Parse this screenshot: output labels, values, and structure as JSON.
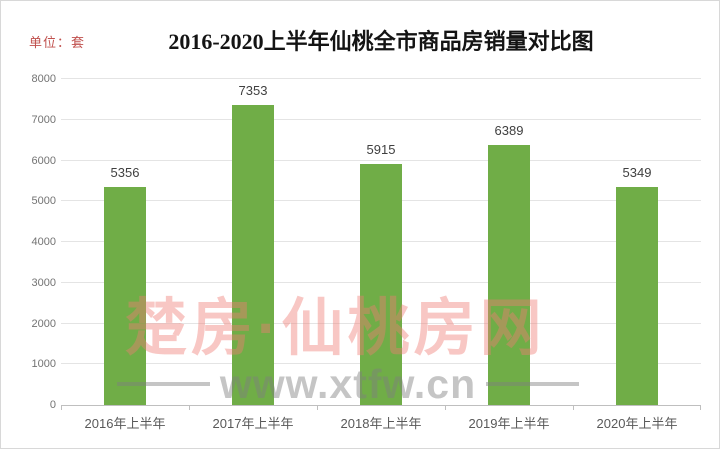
{
  "chart_data": {
    "type": "bar",
    "title": "2016-2020上半年仙桃全市商品房销量对比图",
    "unit_label": "单位：套",
    "categories": [
      "2016年上半年",
      "2017年上半年",
      "2018年上半年",
      "2019年上半年",
      "2020年上半年"
    ],
    "values": [
      5356,
      7353,
      5915,
      6389,
      5349
    ],
    "ylim": [
      0,
      8000
    ],
    "ytick_interval": 1000,
    "yticks": [
      0,
      1000,
      2000,
      3000,
      4000,
      5000,
      6000,
      7000,
      8000
    ],
    "grid": "horizontal",
    "legend": "none",
    "bar_color": "#70AD47",
    "data_label_color": "#404040",
    "y_label_color": "#737373",
    "x_label_color": "#595959",
    "gridline_color": "#e4e4e4",
    "axis_line_color": "#bfbfbf",
    "title_color": "#141414",
    "unit_label_color": "#C0504D"
  },
  "watermark": {
    "cn_text": "楚房·仙桃房网",
    "url_text": "www.xtfw.cn",
    "cn_color": "#F07C74",
    "cn_opacity": 0.42,
    "url_color": "#7F7F7F",
    "url_opacity": 0.45
  }
}
